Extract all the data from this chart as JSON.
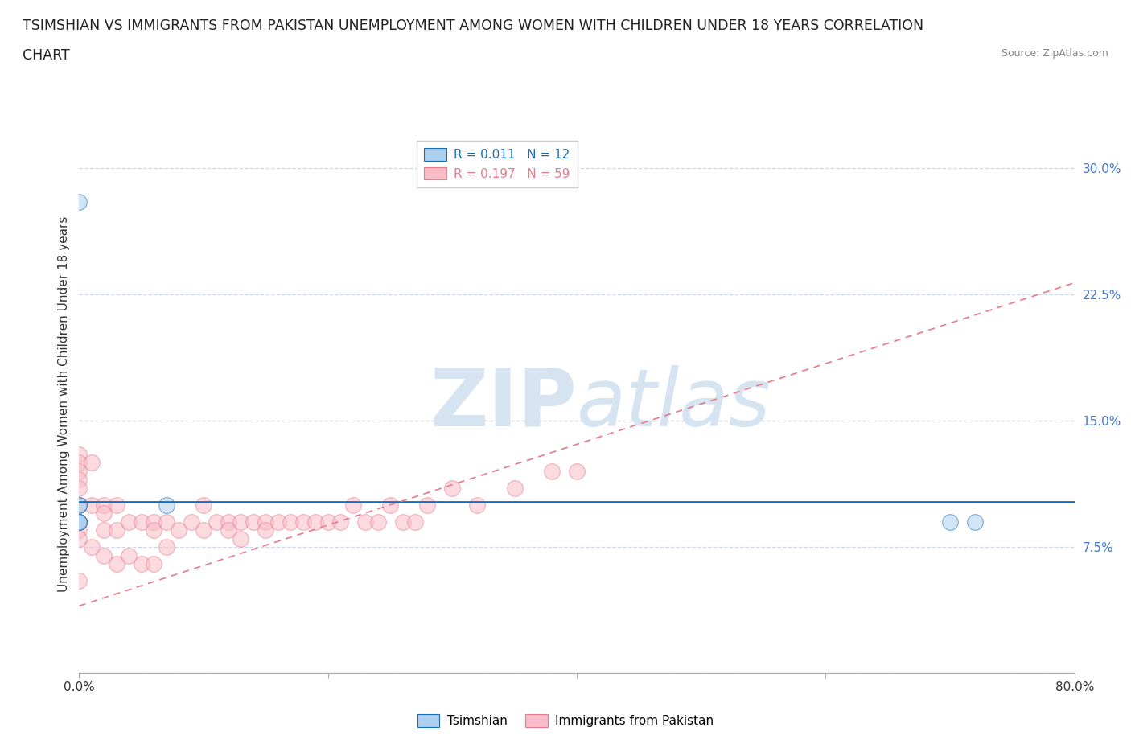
{
  "title_line1": "TSIMSHIAN VS IMMIGRANTS FROM PAKISTAN UNEMPLOYMENT AMONG WOMEN WITH CHILDREN UNDER 18 YEARS CORRELATION",
  "title_line2": "CHART",
  "source_text": "Source: ZipAtlas.com",
  "ylabel": "Unemployment Among Women with Children Under 18 years",
  "xlim": [
    0.0,
    0.8
  ],
  "ylim": [
    0.0,
    0.32
  ],
  "yticks": [
    0.0,
    0.075,
    0.15,
    0.225,
    0.3
  ],
  "ytick_labels": [
    "",
    "7.5%",
    "15.0%",
    "22.5%",
    "30.0%"
  ],
  "xticks": [
    0.0,
    0.2,
    0.4,
    0.6,
    0.8
  ],
  "xtick_labels": [
    "0.0%",
    "",
    "",
    "",
    "80.0%"
  ],
  "tsimshian_x": [
    0.0,
    0.0,
    0.0,
    0.0,
    0.0,
    0.0,
    0.0,
    0.07,
    0.7,
    0.72
  ],
  "tsimshian_y": [
    0.28,
    0.1,
    0.1,
    0.09,
    0.09,
    0.09,
    0.09,
    0.1,
    0.09,
    0.09
  ],
  "pakistan_x": [
    0.0,
    0.0,
    0.0,
    0.0,
    0.0,
    0.0,
    0.0,
    0.0,
    0.0,
    0.0,
    0.01,
    0.01,
    0.01,
    0.02,
    0.02,
    0.02,
    0.02,
    0.03,
    0.03,
    0.03,
    0.04,
    0.04,
    0.05,
    0.05,
    0.06,
    0.06,
    0.06,
    0.07,
    0.07,
    0.08,
    0.09,
    0.1,
    0.1,
    0.11,
    0.12,
    0.12,
    0.13,
    0.13,
    0.14,
    0.15,
    0.15,
    0.16,
    0.17,
    0.18,
    0.19,
    0.2,
    0.21,
    0.22,
    0.23,
    0.24,
    0.25,
    0.26,
    0.27,
    0.28,
    0.3,
    0.32,
    0.35,
    0.38,
    0.4
  ],
  "pakistan_y": [
    0.13,
    0.125,
    0.12,
    0.115,
    0.11,
    0.1,
    0.09,
    0.085,
    0.08,
    0.055,
    0.125,
    0.1,
    0.075,
    0.1,
    0.095,
    0.085,
    0.07,
    0.1,
    0.085,
    0.065,
    0.09,
    0.07,
    0.09,
    0.065,
    0.09,
    0.085,
    0.065,
    0.09,
    0.075,
    0.085,
    0.09,
    0.1,
    0.085,
    0.09,
    0.09,
    0.085,
    0.09,
    0.08,
    0.09,
    0.09,
    0.085,
    0.09,
    0.09,
    0.09,
    0.09,
    0.09,
    0.09,
    0.1,
    0.09,
    0.09,
    0.1,
    0.09,
    0.09,
    0.1,
    0.11,
    0.1,
    0.11,
    0.12,
    0.12
  ],
  "tsimshian_line_color": "#1a6db5",
  "pakistan_line_color": "#e87a8a",
  "scatter_tsimshian_color": "#aed0f0",
  "scatter_pakistan_color": "#f9bcc8",
  "grid_color": "#d0d8e8",
  "background_color": "#ffffff",
  "watermark_color": "#d5e4f0",
  "title_fontsize": 12.5,
  "axis_label_fontsize": 11,
  "tick_fontsize": 11,
  "scatter_size": 200,
  "scatter_alpha": 0.55,
  "line_width": 2.0,
  "tsimshian_line_intercept": 0.102,
  "tsimshian_line_slope": 0.0,
  "pakistan_line_intercept": 0.04,
  "pakistan_line_slope": 0.24
}
